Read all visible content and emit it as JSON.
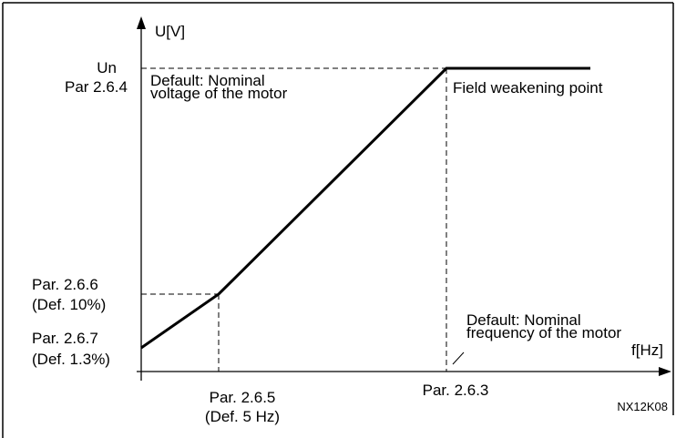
{
  "axes": {
    "y_label": "U[V]",
    "x_label": "f[Hz]"
  },
  "y_points": {
    "nominal": {
      "name": "Un",
      "param": "Par 2.6.4"
    },
    "midpoint": {
      "param": "Par. 2.6.6",
      "default": "(Def. 10%)"
    },
    "zero": {
      "param": "Par. 2.6.7",
      "default": "(Def. 1.3%)"
    }
  },
  "x_points": {
    "midpoint": {
      "param": "Par. 2.6.5",
      "default": "(Def. 5 Hz)"
    },
    "field_weakening": {
      "param": "Par. 2.6.3"
    }
  },
  "annotations": {
    "voltage_default": [
      "Default: Nominal",
      "voltage of the motor"
    ],
    "field_weakening_point": "Field weakening point",
    "frequency_default": [
      "Default: Nominal",
      "frequency of the motor"
    ]
  },
  "figure_id": "NX12K08"
}
